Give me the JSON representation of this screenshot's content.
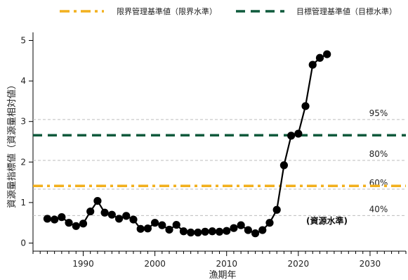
{
  "legend": [
    {
      "label": "限界管理基準値（限界水準）",
      "color": "#F2B01E",
      "style": "dash-dot"
    },
    {
      "label": "目標管理基準値（目標水準）",
      "color": "#0E5A3C",
      "style": "dashed"
    }
  ],
  "chart_data": {
    "type": "line",
    "xlabel": "漁期年",
    "ylabel": "資源量指標値（資源量相対値）",
    "xlim": [
      1983,
      2035
    ],
    "ylim": [
      -0.2,
      5.2
    ],
    "xticks": [
      1990,
      2000,
      2010,
      2020,
      2030
    ],
    "yticks": [
      0,
      1,
      2,
      3,
      4,
      5
    ],
    "grid": false,
    "legend_position": "top",
    "series": [
      {
        "color": "#000000",
        "marker": "circle",
        "x": [
          1985,
          1986,
          1987,
          1988,
          1989,
          1990,
          1991,
          1992,
          1993,
          1994,
          1995,
          1996,
          1997,
          1998,
          1999,
          2000,
          2001,
          2002,
          2003,
          2004,
          2005,
          2006,
          2007,
          2008,
          2009,
          2010,
          2011,
          2012,
          2013,
          2014,
          2015,
          2016,
          2017,
          2018,
          2019,
          2020,
          2021,
          2022,
          2023,
          2024
        ],
        "y": [
          0.6,
          0.58,
          0.64,
          0.5,
          0.42,
          0.48,
          0.78,
          1.04,
          0.75,
          0.7,
          0.6,
          0.67,
          0.58,
          0.35,
          0.36,
          0.5,
          0.44,
          0.33,
          0.45,
          0.29,
          0.26,
          0.26,
          0.28,
          0.29,
          0.28,
          0.3,
          0.37,
          0.44,
          0.32,
          0.24,
          0.32,
          0.5,
          0.82,
          1.92,
          2.65,
          2.7,
          3.38,
          4.4,
          4.57,
          4.66
        ]
      }
    ],
    "reference_lines": [
      {
        "name": "目標管理基準値（目標水準）",
        "value": 2.66,
        "color": "#0E5A3C",
        "style": "dashed"
      },
      {
        "name": "限界管理基準値（限界水準）",
        "value": 1.41,
        "color": "#F2B01E",
        "style": "dash-dot"
      }
    ],
    "percentile_lines": [
      {
        "label": "95%",
        "value": 3.05
      },
      {
        "label": "80%",
        "value": 2.04
      },
      {
        "label": "60%",
        "value": 1.33
      },
      {
        "label": "40%",
        "value": 0.68
      }
    ],
    "annotations": [
      {
        "text": "(資源水準)"
      }
    ]
  }
}
